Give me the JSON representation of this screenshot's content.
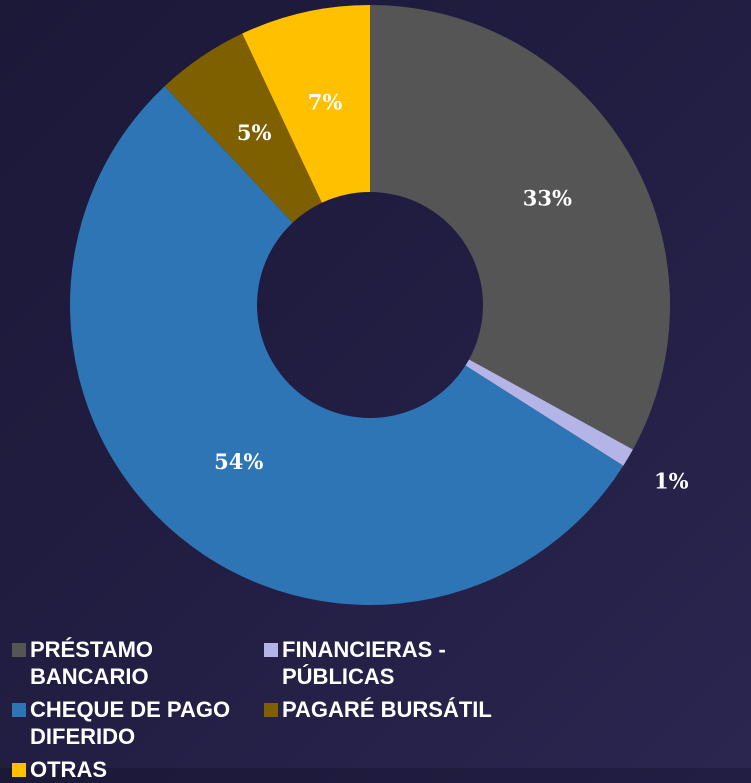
{
  "chart_data": {
    "type": "donut",
    "categories": [
      "PRÉSTAMO BANCARIO",
      "FINANCIERAS - PÚBLICAS",
      "CHEQUE DE PAGO DIFERIDO",
      "PAGARÉ BURSÁTIL",
      "OTRAS"
    ],
    "values": [
      33,
      1,
      54,
      5,
      7
    ],
    "value_labels": [
      "33%",
      "1%",
      "54%",
      "5%",
      "7%"
    ],
    "colors": [
      "#555555",
      "#b4b4e6",
      "#2e75b6",
      "#7f6000",
      "#ffc000"
    ],
    "legend": "bottom"
  }
}
